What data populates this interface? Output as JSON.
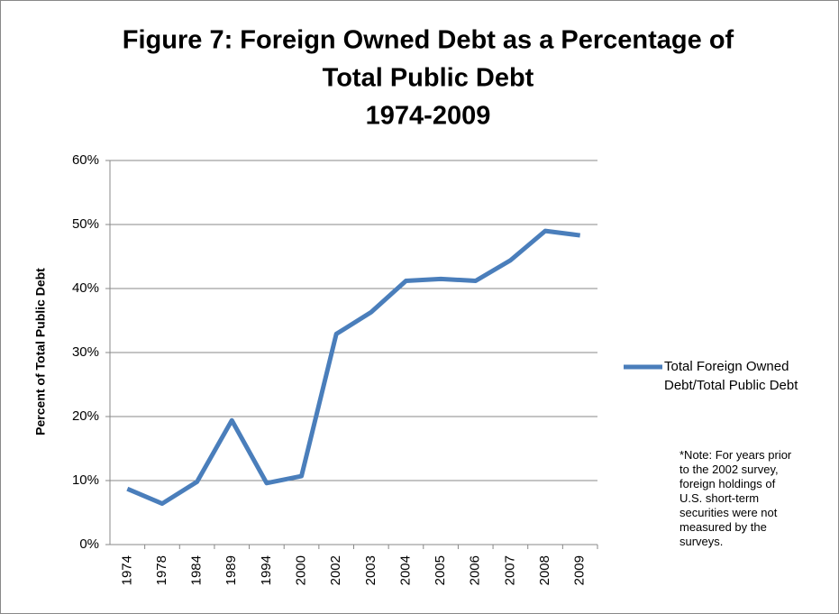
{
  "chart_data": {
    "type": "line",
    "title": [
      "Figure 7: Foreign Owned Debt as a Percentage of",
      "Total Public Debt",
      "1974-2009"
    ],
    "ylabel": "Percent of Total Public Debt",
    "categories": [
      "1974",
      "1978",
      "1984",
      "1989",
      "1994",
      "2000",
      "2002",
      "2003",
      "2004",
      "2005",
      "2006",
      "2007",
      "2008",
      "2009"
    ],
    "series": [
      {
        "name": "Total Foreign Owned Debt/Total Public Debt",
        "color": "#4a7ebb",
        "values": [
          8.7,
          6.4,
          9.8,
          19.4,
          9.6,
          10.7,
          32.9,
          36.3,
          41.2,
          41.5,
          41.2,
          44.4,
          49.0,
          48.3
        ]
      }
    ],
    "ylim": [
      0,
      60
    ],
    "yticks": [
      {
        "value": 0,
        "label": "0%"
      },
      {
        "value": 10,
        "label": "10%"
      },
      {
        "value": 20,
        "label": "20%"
      },
      {
        "value": 30,
        "label": "30%"
      },
      {
        "value": 40,
        "label": "40%"
      },
      {
        "value": 50,
        "label": "50%"
      },
      {
        "value": 60,
        "label": "60%"
      }
    ],
    "grid": true,
    "legend": "right",
    "annotation": "*Note: For years prior to the 2002 survey, foreign holdings of U.S. short-term securities were not measured by the surveys."
  }
}
